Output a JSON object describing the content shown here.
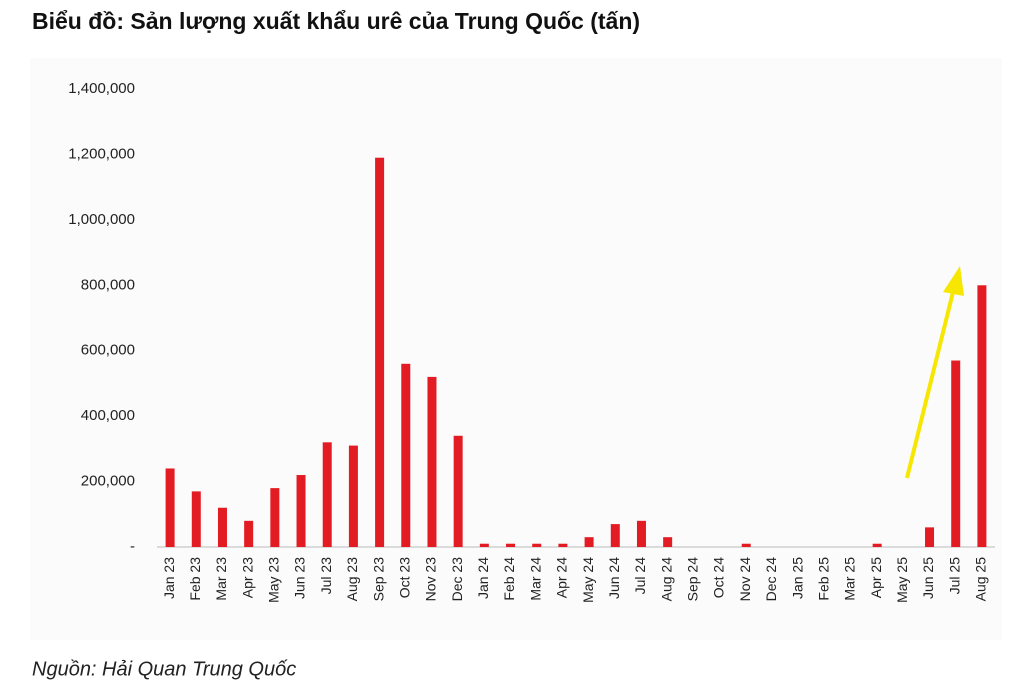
{
  "chart_data": {
    "type": "bar",
    "title": "Biểu đồ: Sản lượng xuất khẩu urê của Trung Quốc (tấn)",
    "source": "Nguồn: Hải Quan Trung Quốc",
    "categories": [
      "Jan 23",
      "Feb 23",
      "Mar 23",
      "Apr 23",
      "May 23",
      "Jun 23",
      "Jul 23",
      "Aug 23",
      "Sep 23",
      "Oct 23",
      "Nov 23",
      "Dec 23",
      "Jan 24",
      "Feb 24",
      "Mar 24",
      "Apr 24",
      "May 24",
      "Jun 24",
      "Jul 24",
      "Aug 24",
      "Sep 24",
      "Oct 24",
      "Nov 24",
      "Dec 24",
      "Jan 25",
      "Feb 25",
      "Mar 25",
      "Apr 25",
      "May 25",
      "Jun 25",
      "Jul 25",
      "Aug 25"
    ],
    "values": [
      240000,
      170000,
      120000,
      80000,
      180000,
      220000,
      320000,
      310000,
      1190000,
      560000,
      520000,
      340000,
      10000,
      10000,
      10000,
      10000,
      30000,
      70000,
      80000,
      30000,
      0,
      0,
      10000,
      0,
      0,
      0,
      0,
      10000,
      0,
      60000,
      570000,
      800000
    ],
    "color": "#e31b23",
    "ylim": [
      0,
      1400000
    ],
    "yticks": [
      {
        "value": 0,
        "label": "-"
      },
      {
        "value": 200000,
        "label": "200,000"
      },
      {
        "value": 400000,
        "label": "400,000"
      },
      {
        "value": 600000,
        "label": "600,000"
      },
      {
        "value": 800000,
        "label": "800,000"
      },
      {
        "value": 1000000,
        "label": "1,000,000"
      },
      {
        "value": 1200000,
        "label": "1,200,000"
      },
      {
        "value": 1400000,
        "label": "1,400,000"
      }
    ],
    "grid": false
  }
}
